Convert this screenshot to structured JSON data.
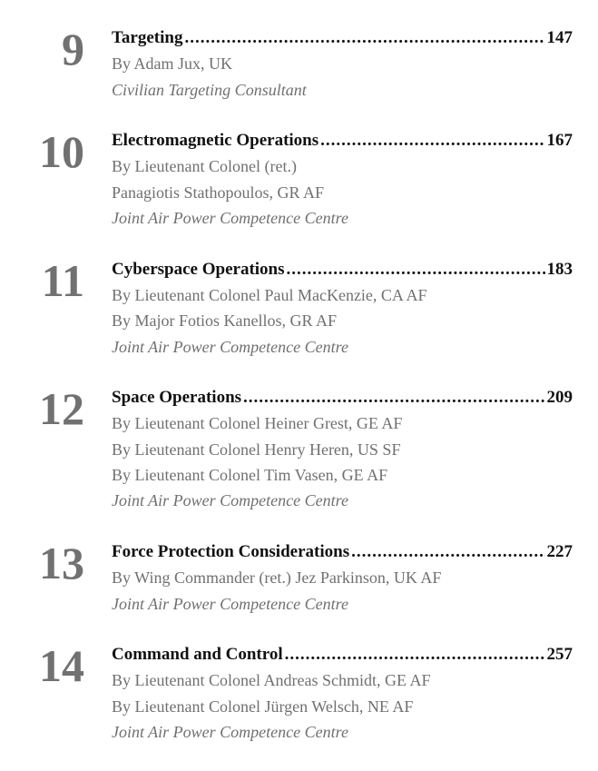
{
  "chapters": [
    {
      "number": "9",
      "title": "Targeting",
      "page": "147",
      "lines": [
        "By Adam Jux, UK"
      ],
      "org": "Civilian Targeting Consultant"
    },
    {
      "number": "10",
      "title": "Electromagnetic Operations",
      "page": "167",
      "lines": [
        "By Lieutenant Colonel (ret.)",
        "Panagiotis Stathopoulos, GR AF"
      ],
      "org": "Joint Air Power Competence Centre"
    },
    {
      "number": "11",
      "title": "Cyberspace Operations",
      "page": "183",
      "lines": [
        "By Lieutenant Colonel Paul MacKenzie, CA AF",
        "By Major Fotios Kanellos, GR AF"
      ],
      "org": "Joint Air Power Competence Centre"
    },
    {
      "number": "12",
      "title": "Space Operations",
      "page": "209",
      "lines": [
        "By Lieutenant Colonel Heiner Grest, GE AF",
        "By Lieutenant Colonel Henry Heren, US SF",
        "By Lieutenant Colonel Tim Vasen, GE AF"
      ],
      "org": "Joint Air Power Competence Centre"
    },
    {
      "number": "13",
      "title": "Force Protection Considerations",
      "page": "227",
      "lines": [
        "By Wing Commander (ret.) Jez Parkinson, UK AF"
      ],
      "org": "Joint Air Power Competence Centre"
    },
    {
      "number": "14",
      "title": "Command and Control",
      "page": "257",
      "lines": [
        "By Lieutenant Colonel Andreas Schmidt, GE AF",
        "By Lieutenant Colonel Jürgen Welsch, NE AF"
      ],
      "org": "Joint Air Power Competence Centre"
    }
  ]
}
